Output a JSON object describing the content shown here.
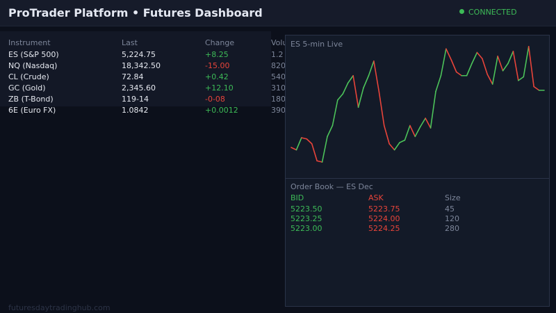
{
  "header": {
    "title": "ProTrader Platform  •  Futures Dashboard",
    "status": "CONNECTED",
    "status_color": "#3dbb57"
  },
  "table": {
    "columns": [
      "Instrument",
      "Last",
      "Change",
      "Volu"
    ],
    "rows": [
      {
        "instrument": "ES (S&P 500)",
        "last": "5,224.75",
        "change": "+8.25",
        "direction": "up",
        "volume": "1.2"
      },
      {
        "instrument": "NQ (Nasdaq)",
        "last": "18,342.50",
        "change": "-15.00",
        "direction": "down",
        "volume": "820"
      },
      {
        "instrument": "CL (Crude)",
        "last": "72.84",
        "change": "+0.42",
        "direction": "up",
        "volume": "540"
      },
      {
        "instrument": "GC (Gold)",
        "last": "2,345.60",
        "change": "+12.10",
        "direction": "up",
        "volume": "310"
      },
      {
        "instrument": "ZB (T-Bond)",
        "last": "119-14",
        "change": "-0-08",
        "direction": "down",
        "volume": "180"
      },
      {
        "instrument": "6E (Euro FX)",
        "last": "1.0842",
        "change": "+0.0012",
        "direction": "up",
        "volume": "390"
      }
    ]
  },
  "chart": {
    "label": "ES  5-min  Live"
  },
  "chart_data": {
    "type": "line",
    "title": "ES  5-min  Live",
    "up_color": "#4cc35a",
    "down_color": "#e8443a",
    "grid": false,
    "values": [
      16,
      14,
      24,
      23,
      19,
      5,
      4,
      25,
      34,
      55,
      60,
      69,
      75,
      49,
      65,
      75,
      87,
      62,
      34,
      19,
      14,
      20,
      22,
      34,
      25,
      33,
      40,
      32,
      62,
      75,
      97,
      88,
      78,
      75,
      75,
      85,
      94,
      89,
      76,
      68,
      91,
      79,
      85,
      95,
      71,
      74,
      99,
      66,
      63,
      63
    ]
  },
  "order_book": {
    "title": "Order Book  —  ES Dec",
    "headers": {
      "bid": "BID",
      "ask": "ASK",
      "size": "Size"
    },
    "rows": [
      {
        "bid": "5223.50",
        "ask": "5223.75",
        "size": "45"
      },
      {
        "bid": "5223.25",
        "ask": "5224.00",
        "size": "120"
      },
      {
        "bid": "5223.00",
        "ask": "5224.25",
        "size": "280"
      }
    ]
  },
  "footer": {
    "text": "futuresdaytradinghub.com"
  }
}
